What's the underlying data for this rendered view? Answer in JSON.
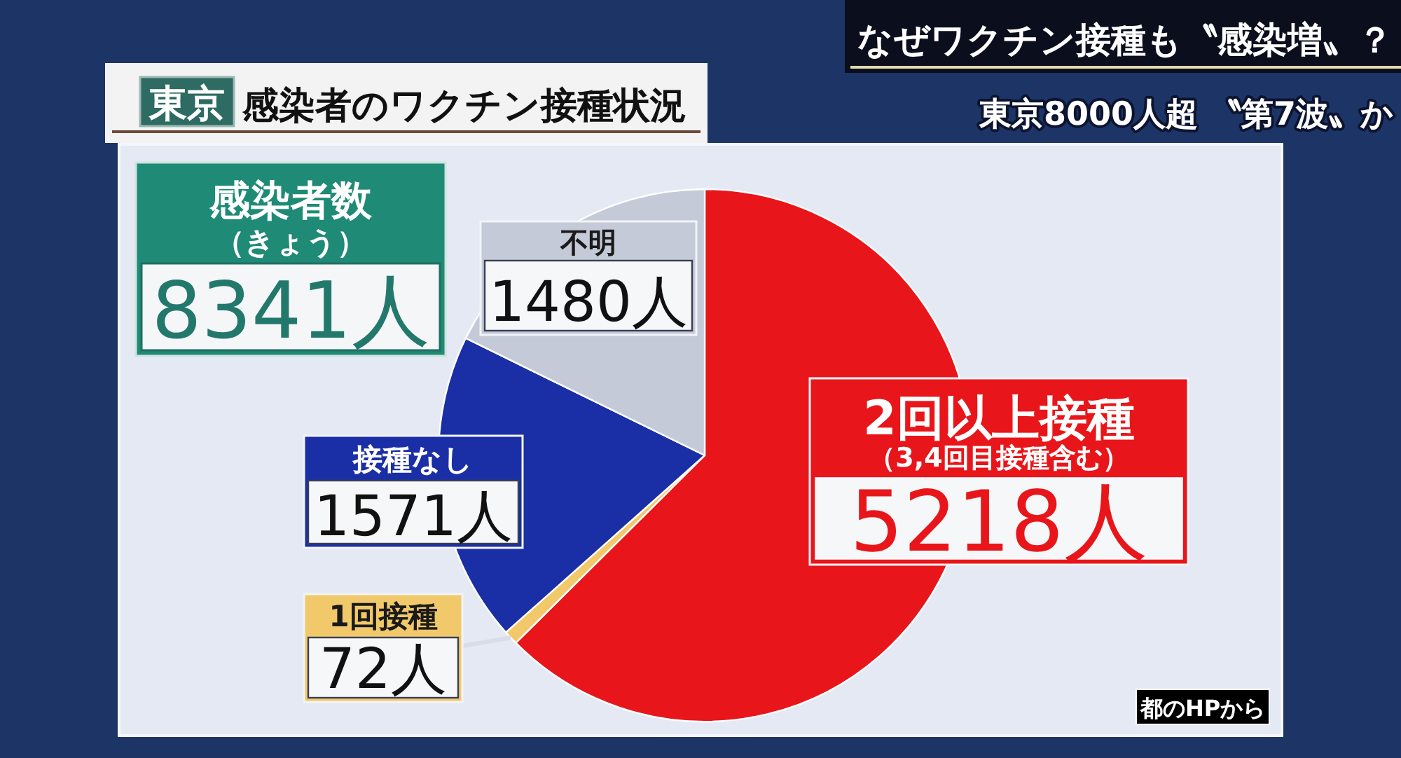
{
  "chart_data": {
    "type": "pie",
    "title": "感染者のワクチン接種状況",
    "categories": [
      "2回以上接種",
      "1回接種",
      "接種なし",
      "不明"
    ],
    "values": [
      5218,
      72,
      1571,
      1480
    ],
    "colors": [
      "#e8161a",
      "#f1c86a",
      "#1a2fa5",
      "#c5cad9"
    ],
    "value_labels": [
      "5218人",
      "72人",
      "1571人",
      "1480人"
    ],
    "annotations": [
      "東京",
      "感染者数",
      "（きょう）",
      "8341人",
      "（3,4回目接種含む）",
      "都のHPから",
      "なぜワクチン接種も〝感染増〟？",
      "東京8000人超 〝第7波〟か"
    ]
  }
}
